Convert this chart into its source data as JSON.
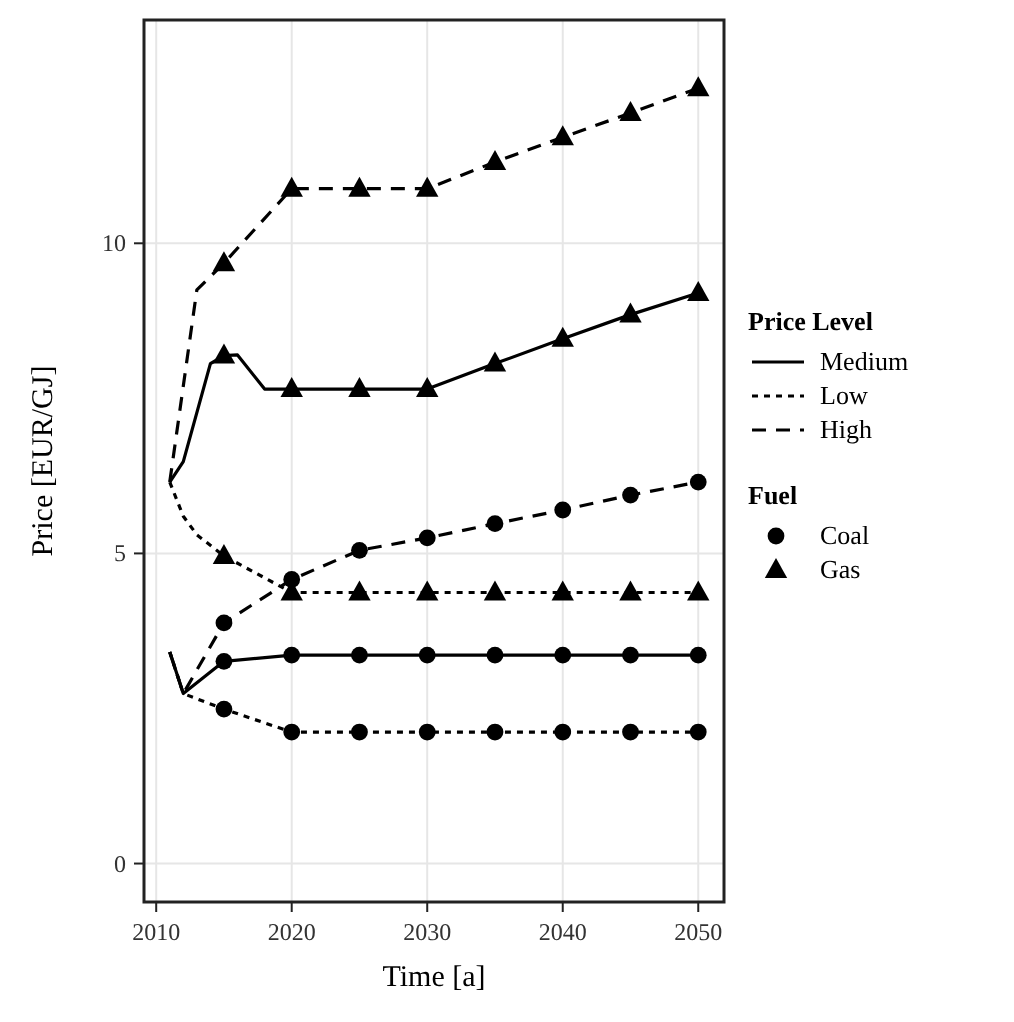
{
  "chart_data": {
    "type": "line",
    "xlabel": "Time [a]",
    "ylabel": "Price [EUR/GJ]",
    "legend_title": [
      "Price Level",
      "Fuel"
    ],
    "xlim": [
      2009.1,
      2051.9
    ],
    "xticks": [
      2010,
      2020,
      2030,
      2040,
      2050
    ],
    "ylim": [
      -0.62,
      13.6
    ],
    "yticks": [
      0,
      5,
      10
    ],
    "grid": true,
    "legend": "right",
    "series": [
      {
        "name": "Medium",
        "color": "#000000",
        "line_style": "solid",
        "marker": "none",
        "x": [
          2011,
          2012,
          2015,
          2020,
          2025,
          2030,
          2035,
          2040,
          2045,
          2050
        ],
        "values": [
          3.41,
          2.74,
          3.26,
          3.36,
          3.36,
          3.36,
          3.36,
          3.36,
          3.36,
          3.36
        ]
      },
      {
        "name": "Low",
        "color": "#000000",
        "line_style": "dotted",
        "marker": "none",
        "x": [
          2011,
          2012,
          2015,
          2020,
          2025,
          2030,
          2035,
          2040,
          2045,
          2050
        ],
        "values": [
          3.41,
          2.74,
          2.49,
          2.12,
          2.12,
          2.12,
          2.12,
          2.12,
          2.12,
          2.12
        ]
      },
      {
        "name": "High",
        "color": "#000000",
        "line_style": "dashed",
        "marker": "none",
        "x": [
          2011,
          2012,
          2015,
          2020,
          2025,
          2030,
          2035,
          2040,
          2045,
          2050
        ],
        "values": [
          3.41,
          2.74,
          3.88,
          4.58,
          5.05,
          5.25,
          5.48,
          5.7,
          5.94,
          6.15
        ]
      },
      {
        "color": "#000000",
        "line_style": "solid",
        "marker": "none",
        "x": [
          2011,
          2012,
          2014,
          2015,
          2016,
          2018,
          2020,
          2025,
          2030,
          2035,
          2040,
          2045,
          2050
        ],
        "values": [
          6.15,
          6.48,
          8.06,
          8.19,
          8.2,
          7.65,
          7.65,
          7.65,
          7.65,
          8.06,
          8.46,
          8.85,
          9.2
        ]
      },
      {
        "color": "#000000",
        "line_style": "dotted",
        "marker": "none",
        "x": [
          2011,
          2012,
          2013,
          2015,
          2020,
          2025,
          2030,
          2035,
          2040,
          2045,
          2050
        ],
        "values": [
          6.15,
          5.6,
          5.3,
          4.96,
          4.37,
          4.37,
          4.37,
          4.37,
          4.37,
          4.37,
          4.37
        ]
      },
      {
        "color": "#000000",
        "line_style": "dashed",
        "marker": "none",
        "x": [
          2011,
          2013,
          2015,
          2020,
          2025,
          2030,
          2035,
          2040,
          2045,
          2050
        ],
        "values": [
          6.15,
          9.25,
          9.68,
          10.88,
          10.88,
          10.88,
          11.31,
          11.71,
          12.1,
          12.5
        ]
      },
      {
        "name": "Coal",
        "type": "scatter",
        "color": "#000000",
        "marker": "circle",
        "x": [
          2015,
          2020,
          2025,
          2030,
          2035,
          2040,
          2045,
          2050,
          2015,
          2020,
          2025,
          2030,
          2035,
          2040,
          2045,
          2050,
          2015,
          2020,
          2025,
          2030,
          2035,
          2040,
          2045,
          2050
        ],
        "values": [
          3.26,
          3.36,
          3.36,
          3.36,
          3.36,
          3.36,
          3.36,
          3.36,
          2.49,
          2.12,
          2.12,
          2.12,
          2.12,
          2.12,
          2.12,
          2.12,
          3.88,
          4.58,
          5.05,
          5.25,
          5.48,
          5.7,
          5.94,
          6.15
        ]
      },
      {
        "name": "Gas",
        "type": "scatter",
        "color": "#000000",
        "marker": "triangle",
        "x": [
          2015,
          2020,
          2025,
          2030,
          2035,
          2040,
          2045,
          2050,
          2015,
          2020,
          2025,
          2030,
          2035,
          2040,
          2045,
          2050,
          2015,
          2020,
          2025,
          2030,
          2035,
          2040,
          2045,
          2050
        ],
        "values": [
          8.19,
          7.65,
          7.65,
          7.65,
          8.06,
          8.46,
          8.85,
          9.2,
          4.96,
          4.37,
          4.37,
          4.37,
          4.37,
          4.37,
          4.37,
          4.37,
          9.68,
          10.88,
          10.88,
          10.88,
          11.31,
          11.71,
          12.1,
          12.5
        ]
      }
    ]
  }
}
